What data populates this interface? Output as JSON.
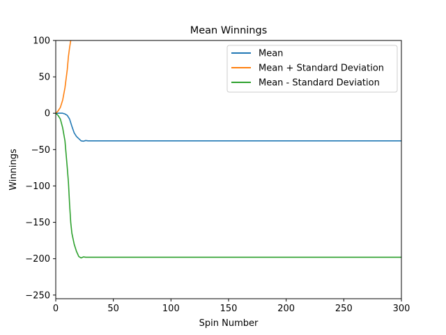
{
  "chart_data": {
    "type": "line",
    "title": "Mean Winnings",
    "xlabel": "Spin Number",
    "ylabel": "Winnings",
    "xlim": [
      0,
      300
    ],
    "ylim": [
      -255,
      100
    ],
    "xticks": [
      0,
      50,
      100,
      150,
      200,
      250,
      300
    ],
    "yticks": [
      100,
      50,
      0,
      -50,
      -100,
      -150,
      -200,
      -250
    ],
    "xtick_labels": [
      "0",
      "50",
      "100",
      "150",
      "200",
      "250",
      "300"
    ],
    "ytick_labels": [
      "100",
      "50",
      "0",
      "−50",
      "−100",
      "−150",
      "−200",
      "−250"
    ],
    "grid": false,
    "legend_position": "top-right",
    "series": [
      {
        "name": "Mean",
        "color": "#1f77b4",
        "x": [
          0,
          2,
          4,
          6,
          8,
          10,
          12,
          14,
          16,
          18,
          20,
          22,
          24,
          26,
          28,
          30,
          35,
          40,
          60,
          100,
          150,
          200,
          250,
          300
        ],
        "y": [
          0,
          0,
          0,
          0,
          -1,
          -3,
          -8,
          -18,
          -27,
          -32,
          -35,
          -38,
          -38.5,
          -37.5,
          -38,
          -38,
          -38,
          -38,
          -38,
          -38,
          -38,
          -38,
          -38,
          -38
        ]
      },
      {
        "name": "Mean + Standard Deviation",
        "color": "#ff7f0e",
        "x": [
          0,
          2,
          4,
          6,
          8,
          10,
          11,
          12,
          13
        ],
        "y": [
          0,
          3,
          8,
          18,
          35,
          60,
          78,
          90,
          100
        ]
      },
      {
        "name": "Mean - Standard Deviation",
        "color": "#2ca02c",
        "x": [
          0,
          2,
          4,
          6,
          8,
          10,
          11,
          12,
          13,
          14,
          16,
          18,
          20,
          22,
          24,
          26,
          28,
          30,
          35,
          40,
          60,
          100,
          150,
          200,
          250,
          300
        ],
        "y": [
          0,
          -3,
          -8,
          -20,
          -38,
          -75,
          -95,
          -125,
          -150,
          -165,
          -180,
          -190,
          -197,
          -199,
          -197.5,
          -198,
          -198,
          -198,
          -198,
          -198,
          -198,
          -198,
          -198,
          -198,
          -198,
          -198
        ]
      }
    ]
  }
}
